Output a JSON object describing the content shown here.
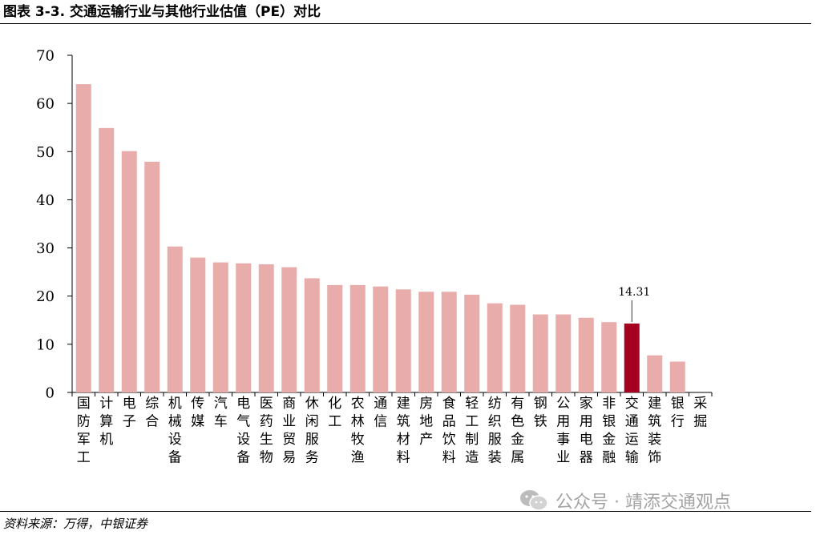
{
  "header": {
    "title": "图表 3-3. 交通运输行业与其他行业估值（PE）对比"
  },
  "footer": {
    "source": "资料来源：万得，中银证券"
  },
  "watermark": {
    "text": "公众号 · 靖添交通观点",
    "icon": "wechat-icon"
  },
  "chart_data": {
    "type": "bar",
    "title": "",
    "xlabel": "",
    "ylabel": "",
    "ylim": [
      0,
      70
    ],
    "yticks": [
      0,
      10,
      20,
      30,
      40,
      50,
      60,
      70
    ],
    "grid": false,
    "legend": "none",
    "categories": [
      "国防军工",
      "计算机",
      "电子",
      "综合",
      "机械设备",
      "传媒",
      "汽车",
      "电气设备",
      "医药生物",
      "商业贸易",
      "休闲服务",
      "化工",
      "农林牧渔",
      "通信",
      "建筑材料",
      "房地产",
      "食品饮料",
      "轻工制造",
      "纺织服装",
      "有色金属",
      "钢铁",
      "公用事业",
      "家用电器",
      "非银金融",
      "交通运输",
      "建筑装饰",
      "银行",
      "采掘"
    ],
    "values": [
      64.0,
      54.9,
      50.1,
      47.9,
      30.3,
      28.0,
      27.0,
      26.8,
      26.6,
      26.0,
      23.7,
      22.3,
      22.3,
      22.0,
      21.4,
      20.9,
      20.9,
      20.3,
      18.5,
      18.2,
      16.2,
      16.2,
      15.5,
      14.6,
      14.31,
      7.7,
      6.4,
      0
    ],
    "highlight_index": 24,
    "annotations": [
      {
        "category": "交通运输",
        "text": "14.31",
        "value": 14.31
      }
    ],
    "colors": {
      "bar": "#e8acab",
      "highlight": "#a50021",
      "axis": "#000000"
    }
  }
}
